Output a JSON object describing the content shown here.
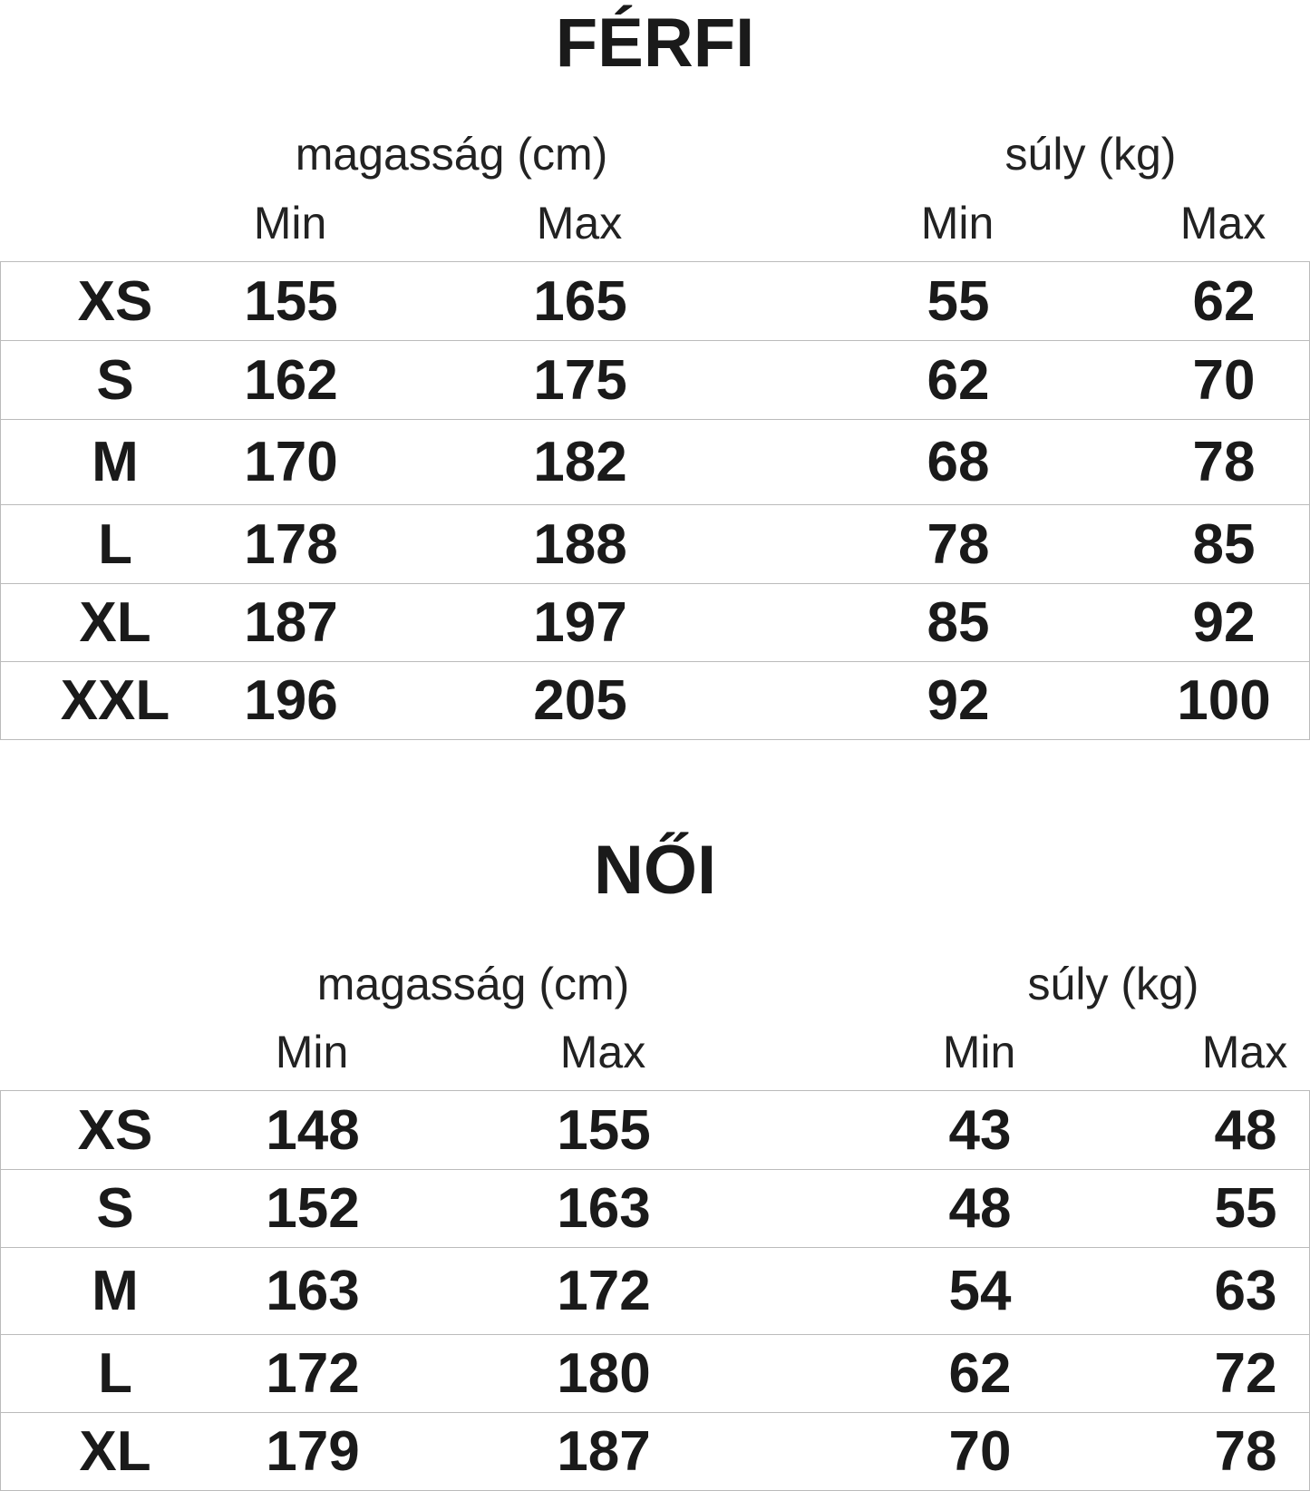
{
  "sections": [
    {
      "title": "FÉRFI",
      "height_label": "magasság (cm)",
      "weight_label": "súly (kg)",
      "min_label": "Min",
      "max_label": "Max",
      "rows": [
        {
          "size": "XS",
          "h_min": "155",
          "h_max": "165",
          "w_min": "55",
          "w_max": "62"
        },
        {
          "size": "S",
          "h_min": "162",
          "h_max": "175",
          "w_min": "62",
          "w_max": "70"
        },
        {
          "size": "M",
          "h_min": "170",
          "h_max": "182",
          "w_min": "68",
          "w_max": "78"
        },
        {
          "size": "L",
          "h_min": "178",
          "h_max": "188",
          "w_min": "78",
          "w_max": "85"
        },
        {
          "size": "XL",
          "h_min": "187",
          "h_max": "197",
          "w_min": "85",
          "w_max": "92"
        },
        {
          "size": "XXL",
          "h_min": "196",
          "h_max": "205",
          "w_min": "92",
          "w_max": "100"
        }
      ]
    },
    {
      "title": "NŐI",
      "height_label": "magasság (cm)",
      "weight_label": "súly (kg)",
      "min_label": "Min",
      "max_label": "Max",
      "rows": [
        {
          "size": "XS",
          "h_min": "148",
          "h_max": "155",
          "w_min": "43",
          "w_max": "48"
        },
        {
          "size": "S",
          "h_min": "152",
          "h_max": "163",
          "w_min": "48",
          "w_max": "55"
        },
        {
          "size": "M",
          "h_min": "163",
          "h_max": "172",
          "w_min": "54",
          "w_max": "63"
        },
        {
          "size": "L",
          "h_min": "172",
          "h_max": "180",
          "w_min": "62",
          "w_max": "72"
        },
        {
          "size": "XL",
          "h_min": "179",
          "h_max": "187",
          "w_min": "70",
          "w_max": "78"
        }
      ]
    }
  ]
}
